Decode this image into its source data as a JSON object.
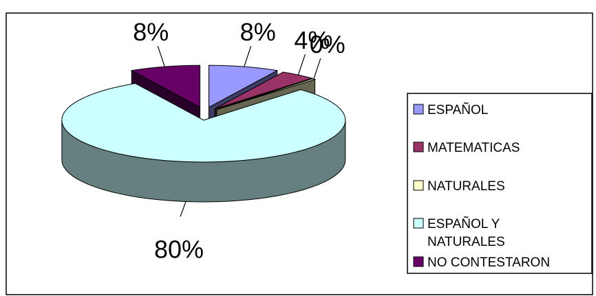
{
  "chart_data": {
    "type": "pie",
    "style": "3d-exploded",
    "categories": [
      "ESPAÑOL",
      "MATEMATICAS",
      "NATURALES",
      "ESPAÑOL Y NATURALES",
      "NO CONTESTARON"
    ],
    "values": [
      8,
      4,
      0,
      80,
      8
    ],
    "data_labels": [
      "8%",
      "4%",
      "0%",
      "80%",
      "8%"
    ],
    "legend_labels": [
      [
        "ESPAÑOL"
      ],
      [
        "MATEMATICAS"
      ],
      [
        "NATURALES"
      ],
      [
        "ESPAÑOL Y",
        "NATURALES"
      ],
      [
        "NO CONTESTARON"
      ]
    ],
    "colors": [
      "#9999ff",
      "#993366",
      "#ffffcc",
      "#ccffff",
      "#660066"
    ],
    "legend_position": "right",
    "title": ""
  }
}
